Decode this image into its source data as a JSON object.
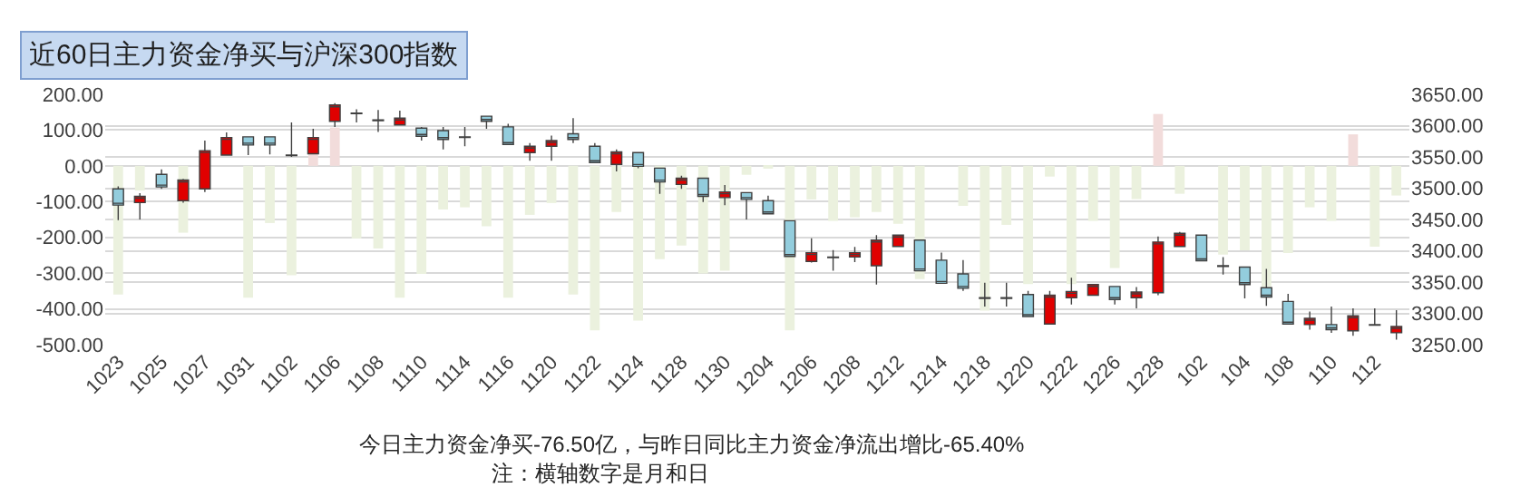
{
  "chart_data": {
    "type": "bar",
    "title": "近60日主力资金净买与沪深300指数",
    "categories": [
      "1023",
      null,
      "1025",
      null,
      "1027",
      null,
      "1031",
      null,
      "1102",
      null,
      "1106",
      null,
      "1108",
      null,
      "1110",
      null,
      "1114",
      null,
      "1116",
      null,
      "1120",
      null,
      "1122",
      null,
      "1124",
      null,
      "1128",
      null,
      "1130",
      null,
      "1204",
      null,
      "1206",
      null,
      "1208",
      null,
      "1212",
      null,
      "1214",
      null,
      "1218",
      null,
      "1220",
      null,
      "1222",
      null,
      "1226",
      null,
      "1228",
      null,
      "102",
      null,
      "104",
      null,
      "108",
      null,
      "110",
      null,
      "112",
      null
    ],
    "series": [
      {
        "values": [
          -360,
          -69,
          null,
          -187,
          null,
          null,
          -369,
          -160,
          -306,
          35,
          107,
          -203,
          -231,
          -369,
          -302,
          -122,
          -116,
          -169,
          -369,
          -137,
          -104,
          -360,
          -460,
          -129,
          -433,
          -261,
          -223,
          -301,
          -293,
          -25,
          -5,
          -460,
          -94,
          -154,
          -144,
          -129,
          -162,
          -317,
          null,
          -112,
          -405,
          -165,
          -331,
          -30,
          -331,
          -154,
          -286,
          -93,
          145,
          -78,
          null,
          -248,
          -236,
          -339,
          -244,
          -116,
          -154,
          88,
          -226,
          -83
        ],
        "colors": [
          "#ebf1de",
          "#ebf1de",
          "#ebf1de",
          "#ebf1de",
          "#ebf1de",
          "#ebf1de",
          "#ebf1de",
          "#ebf1de",
          "#ebf1de",
          "#f2dcdb",
          "#f2dcdb",
          "#ebf1de",
          "#ebf1de",
          "#ebf1de",
          "#ebf1de",
          "#ebf1de",
          "#ebf1de",
          "#ebf1de",
          "#ebf1de",
          "#ebf1de",
          "#ebf1de",
          "#ebf1de",
          "#ebf1de",
          "#ebf1de",
          "#ebf1de",
          "#ebf1de",
          "#ebf1de",
          "#ebf1de",
          "#ebf1de",
          "#ebf1de",
          "#ebf1de",
          "#ebf1de",
          "#ebf1de",
          "#ebf1de",
          "#ebf1de",
          "#ebf1de",
          "#ebf1de",
          "#ebf1de",
          "#ebf1de",
          "#ebf1de",
          "#ebf1de",
          "#ebf1de",
          "#ebf1de",
          "#ebf1de",
          "#ebf1de",
          "#ebf1de",
          "#ebf1de",
          "#ebf1de",
          "#f2dcdb",
          "#ebf1de",
          "#ebf1de",
          "#ebf1de",
          "#ebf1de",
          "#ebf1de",
          "#ebf1de",
          "#ebf1de",
          "#ebf1de",
          "#f2dcdb",
          "#ebf1de",
          "#ebf1de"
        ]
      },
      {
        "type": "candlestick",
        "axis": "y2",
        "ohlc": [
          [
            3499,
            3503,
            3449,
            3473
          ],
          [
            3477,
            3492,
            3450,
            3487
          ],
          [
            3522,
            3530,
            3499,
            3502
          ],
          [
            3480,
            3515,
            3477,
            3513
          ],
          [
            3499,
            3576,
            3494,
            3560
          ],
          [
            3553,
            3589,
            3553,
            3581
          ],
          [
            3582,
            3582,
            3553,
            3569
          ],
          [
            3582,
            3582,
            3554,
            3569
          ],
          [
            3553,
            3605,
            3550,
            3552
          ],
          [
            3555,
            3595,
            3554,
            3581
          ],
          [
            3607,
            3636,
            3598,
            3633
          ],
          [
            3620,
            3626,
            3605,
            3619
          ],
          [
            3609,
            3625,
            3590,
            3608
          ],
          [
            3601,
            3624,
            3601,
            3612
          ],
          [
            3596,
            3598,
            3576,
            3583
          ],
          [
            3592,
            3598,
            3562,
            3578
          ],
          [
            3582,
            3598,
            3567,
            3581
          ],
          [
            3615,
            3615,
            3595,
            3607
          ],
          [
            3598,
            3603,
            3570,
            3570
          ],
          [
            3557,
            3572,
            3544,
            3567
          ],
          [
            3567,
            3584,
            3544,
            3576
          ],
          [
            3587,
            3612,
            3572,
            3578
          ],
          [
            3567,
            3572,
            3541,
            3541
          ],
          [
            3538,
            3562,
            3527,
            3558
          ],
          [
            3557,
            3557,
            3532,
            3535
          ],
          [
            3532,
            3532,
            3491,
            3510
          ],
          [
            3506,
            3520,
            3499,
            3516
          ],
          [
            3516,
            3516,
            3478,
            3487
          ],
          [
            3485,
            3505,
            3473,
            3494
          ],
          [
            3493,
            3493,
            3450,
            3482
          ],
          [
            3480,
            3488,
            3459,
            3459
          ],
          [
            3448,
            3448,
            3391,
            3391
          ],
          [
            3383,
            3420,
            3381,
            3397
          ],
          [
            3390,
            3401,
            3368,
            3389
          ],
          [
            3390,
            3406,
            3382,
            3397
          ],
          [
            3376,
            3425,
            3346,
            3417
          ],
          [
            3407,
            3425,
            3407,
            3425
          ],
          [
            3417,
            3417,
            3368,
            3368
          ],
          [
            3385,
            3397,
            3348,
            3348
          ],
          [
            3363,
            3385,
            3336,
            3340
          ],
          [
            3325,
            3349,
            3311,
            3324
          ],
          [
            3325,
            3349,
            3311,
            3324
          ],
          [
            3330,
            3336,
            3295,
            3295
          ],
          [
            3283,
            3336,
            3283,
            3329
          ],
          [
            3325,
            3357,
            3314,
            3335
          ],
          [
            3329,
            3346,
            3329,
            3346
          ],
          [
            3343,
            3343,
            3314,
            3322
          ],
          [
            3325,
            3342,
            3308,
            3334
          ],
          [
            3333,
            3423,
            3329,
            3414
          ],
          [
            3407,
            3430,
            3407,
            3428
          ],
          [
            3425,
            3425,
            3383,
            3384
          ],
          [
            3376,
            3390,
            3362,
            3375
          ],
          [
            3374,
            3374,
            3324,
            3346
          ],
          [
            3341,
            3371,
            3312,
            3326
          ],
          [
            3319,
            3331,
            3283,
            3283
          ],
          [
            3282,
            3303,
            3274,
            3292
          ],
          [
            3282,
            3311,
            3269,
            3274
          ],
          [
            3272,
            3308,
            3264,
            3296
          ],
          [
            3282,
            3308,
            3281,
            3281
          ],
          [
            3269,
            3305,
            3258,
            3279
          ]
        ],
        "colors": [
          "#93cddd",
          "#e00000",
          "#93cddd",
          "#e00000",
          "#e00000",
          "#e00000",
          "#93cddd",
          "#93cddd",
          "#404040",
          "#e00000",
          "#e00000",
          "#404040",
          "#404040",
          "#e00000",
          "#93cddd",
          "#93cddd",
          "#404040",
          "#93cddd",
          "#93cddd",
          "#e00000",
          "#e00000",
          "#93cddd",
          "#93cddd",
          "#e00000",
          "#93cddd",
          "#93cddd",
          "#e00000",
          "#93cddd",
          "#e00000",
          "#93cddd",
          "#93cddd",
          "#93cddd",
          "#e00000",
          "#404040",
          "#e00000",
          "#e00000",
          "#e00000",
          "#93cddd",
          "#93cddd",
          "#93cddd",
          "#404040",
          "#404040",
          "#93cddd",
          "#e00000",
          "#e00000",
          "#e00000",
          "#93cddd",
          "#e00000",
          "#e00000",
          "#e00000",
          "#93cddd",
          "#404040",
          "#93cddd",
          "#93cddd",
          "#93cddd",
          "#e00000",
          "#93cddd",
          "#e00000",
          "#404040",
          "#e00000"
        ]
      }
    ],
    "ylim": [
      -500,
      200
    ],
    "yticks": [
      {
        "value": -500,
        "label": "-500.00"
      },
      {
        "value": -400,
        "label": "-400.00"
      },
      {
        "value": -300,
        "label": "-300.00"
      },
      {
        "value": -200,
        "label": "-200.00"
      },
      {
        "value": -100,
        "label": "-100.00"
      },
      {
        "value": 0,
        "label": "0.00"
      },
      {
        "value": 100,
        "label": "100.00"
      },
      {
        "value": 200,
        "label": "200.00"
      }
    ],
    "y2lim": [
      3250,
      3650
    ],
    "y2ticks": [
      {
        "value": 3250,
        "label": "3250.00"
      },
      {
        "value": 3300,
        "label": "3300.00"
      },
      {
        "value": 3350,
        "label": "3350.00"
      },
      {
        "value": 3400,
        "label": "3400.00"
      },
      {
        "value": 3450,
        "label": "3450.00"
      },
      {
        "value": 3500,
        "label": "3500.00"
      },
      {
        "value": 3550,
        "label": "3550.00"
      },
      {
        "value": 3600,
        "label": "3600.00"
      },
      {
        "value": 3650,
        "label": "3650.00"
      }
    ],
    "grid": "y",
    "annotations": [
      "今日主力资金净买-76.50亿，与昨日同比主力资金净流出增比-65.40%",
      "注：横轴数字是月和日"
    ]
  }
}
